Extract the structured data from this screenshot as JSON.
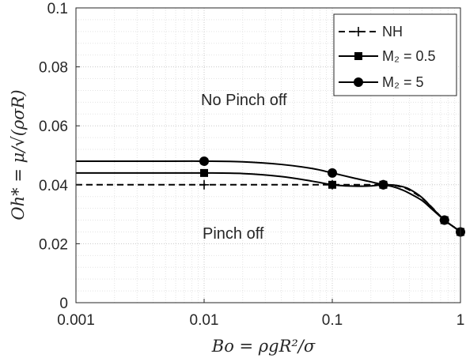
{
  "chart_data": {
    "type": "line",
    "title": "",
    "xlabel": "Bo = ρgR²/σ",
    "ylabel": "Oh* = μ/√(ρσR)",
    "xscale": "log",
    "xlim": [
      0.001,
      1
    ],
    "ylim": [
      0,
      0.1
    ],
    "grid": true,
    "x_ticks": [
      0.001,
      0.01,
      0.1,
      1
    ],
    "x_tick_labels": [
      "0.001",
      "0.01",
      "0.1",
      "1"
    ],
    "y_ticks": [
      0,
      0.02,
      0.04,
      0.06,
      0.08,
      0.1
    ],
    "y_tick_labels": [
      "0",
      "0.02",
      "0.04",
      "0.06",
      "0.08",
      "0.1"
    ],
    "legend_position": "top-right",
    "series": [
      {
        "name": "NH",
        "line_style": "dashed",
        "marker": "plus",
        "color": "#000000",
        "curve_x": [
          0.001,
          0.005,
          0.01,
          0.05,
          0.1,
          0.15,
          0.2,
          0.25,
          0.3,
          0.35,
          0.4,
          0.5,
          0.6,
          0.75,
          0.9,
          1.0
        ],
        "curve_y": [
          0.04,
          0.04,
          0.04,
          0.04,
          0.04,
          0.04,
          0.04,
          0.04,
          0.0398,
          0.0392,
          0.0382,
          0.0355,
          0.0323,
          0.028,
          0.0255,
          0.024
        ],
        "markers_x": [
          0.01,
          0.1,
          0.25,
          0.75,
          1.0
        ],
        "markers_y": [
          0.04,
          0.04,
          0.04,
          0.028,
          0.024
        ]
      },
      {
        "name": "M₂ = 0.5",
        "line_style": "solid",
        "marker": "square",
        "color": "#000000",
        "curve_x": [
          0.001,
          0.005,
          0.01,
          0.02,
          0.04,
          0.07,
          0.1,
          0.13,
          0.17,
          0.2,
          0.25,
          0.3,
          0.35,
          0.4,
          0.5,
          0.6,
          0.75,
          0.9,
          1.0
        ],
        "curve_y": [
          0.044,
          0.044,
          0.044,
          0.0438,
          0.0428,
          0.0412,
          0.04,
          0.0396,
          0.0395,
          0.0396,
          0.04,
          0.0399,
          0.0394,
          0.0385,
          0.0357,
          0.0322,
          0.028,
          0.0255,
          0.024
        ],
        "markers_x": [
          0.01,
          0.1,
          0.25,
          0.75,
          1.0
        ],
        "markers_y": [
          0.044,
          0.04,
          0.04,
          0.028,
          0.024
        ]
      },
      {
        "name": "M₂ = 5",
        "line_style": "solid",
        "marker": "circle",
        "color": "#000000",
        "curve_x": [
          0.001,
          0.005,
          0.01,
          0.02,
          0.04,
          0.07,
          0.1,
          0.15,
          0.2,
          0.25,
          0.3,
          0.35,
          0.4,
          0.5,
          0.6,
          0.75,
          0.9,
          1.0
        ],
        "curve_y": [
          0.048,
          0.048,
          0.048,
          0.0478,
          0.0469,
          0.0455,
          0.044,
          0.0422,
          0.041,
          0.04,
          0.0393,
          0.0383,
          0.0371,
          0.0347,
          0.0317,
          0.028,
          0.0255,
          0.024
        ],
        "markers_x": [
          0.01,
          0.1,
          0.25,
          0.75,
          1.0
        ],
        "markers_y": [
          0.048,
          0.044,
          0.04,
          0.028,
          0.024
        ]
      }
    ],
    "annotations": [
      {
        "text": "No Pinch off",
        "x": 0.05,
        "y": 0.057
      },
      {
        "text": "Pinch off",
        "x": 0.03,
        "y": 0.0245
      }
    ]
  }
}
